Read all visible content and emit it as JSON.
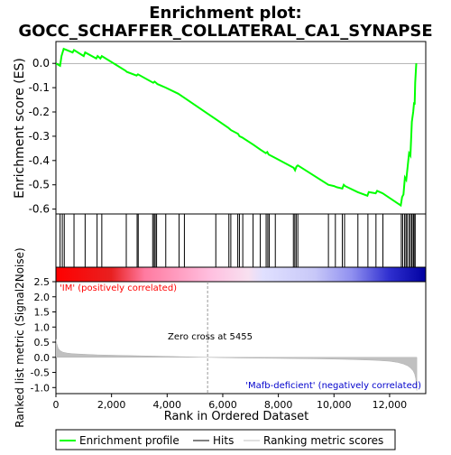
{
  "chart_data": {
    "type": "line",
    "title_line1": "Enrichment plot:",
    "title_line2": "GOCC_SCHAFFER_COLLATERAL_CA1_SYNAPSE",
    "top_panel": {
      "ylabel": "Enrichment score (ES)",
      "ylim": [
        -0.62,
        0.09
      ],
      "yticks": [
        0.0,
        -0.1,
        -0.2,
        -0.3,
        -0.4,
        -0.5,
        -0.6
      ],
      "ytick_labels": [
        "0.0",
        "-0.1",
        "-0.2",
        "-0.3",
        "-0.4",
        "-0.5",
        "-0.6"
      ],
      "series": [
        {
          "name": "Enrichment profile",
          "color": "#00ff00",
          "x": [
            0,
            150,
            200,
            280,
            600,
            650,
            1000,
            1050,
            1450,
            1500,
            1600,
            1650,
            2500,
            2550,
            2900,
            2950,
            3500,
            3550,
            3600,
            3650,
            3950,
            4400,
            4600,
            5750,
            6200,
            6300,
            6550,
            6600,
            6700,
            7100,
            7350,
            7550,
            7600,
            7650,
            7900,
            8550,
            8600,
            8650,
            8700,
            9800,
            10000,
            10100,
            10300,
            10350,
            10400,
            10850,
            11200,
            11250,
            11500,
            11550,
            11750,
            12400,
            12450,
            12500,
            12550,
            12600,
            12700,
            12750,
            12800,
            12850,
            12880,
            12900,
            12920,
            12960
          ],
          "y": [
            0.0,
            -0.01,
            0.03,
            0.06,
            0.045,
            0.055,
            0.03,
            0.045,
            0.02,
            0.03,
            0.02,
            0.03,
            -0.03,
            -0.035,
            -0.05,
            -0.045,
            -0.08,
            -0.075,
            -0.08,
            -0.085,
            -0.1,
            -0.125,
            -0.14,
            -0.23,
            -0.265,
            -0.275,
            -0.29,
            -0.3,
            -0.305,
            -0.335,
            -0.355,
            -0.37,
            -0.365,
            -0.375,
            -0.39,
            -0.43,
            -0.44,
            -0.425,
            -0.42,
            -0.5,
            -0.505,
            -0.51,
            -0.515,
            -0.5,
            -0.505,
            -0.53,
            -0.545,
            -0.53,
            -0.535,
            -0.525,
            -0.535,
            -0.585,
            -0.55,
            -0.54,
            -0.47,
            -0.48,
            -0.37,
            -0.38,
            -0.24,
            -0.2,
            -0.16,
            -0.17,
            -0.08,
            0.0
          ]
        }
      ]
    },
    "hits_panel": {
      "hit_positions": [
        150,
        230,
        300,
        650,
        1050,
        1480,
        1650,
        2530,
        2920,
        2960,
        3480,
        3530,
        3570,
        3620,
        3950,
        4430,
        4620,
        5750,
        6220,
        6290,
        6540,
        6600,
        6720,
        7090,
        7350,
        7560,
        7620,
        7670,
        7890,
        8540,
        8590,
        8640,
        8700,
        9800,
        10050,
        10300,
        10380,
        10860,
        11220,
        11510,
        11760,
        12420,
        12470,
        12540,
        12590,
        12630,
        12700,
        12750,
        12800,
        12850,
        12880,
        12920
      ],
      "hit_color": "#000000",
      "gradient_colors": [
        "#ff0000",
        "#ffffff",
        "#0000ff"
      ]
    },
    "bottom_panel": {
      "ylabel": "Ranked list metric (Signal2Noise)",
      "xlabel": "Rank in Ordered Dataset",
      "ylim": [
        -1.2,
        2.5
      ],
      "yticks": [
        2.5,
        2.0,
        1.5,
        1.0,
        0.5,
        0.0,
        -0.5,
        -1.0
      ],
      "ytick_labels": [
        "2.5",
        "2.0",
        "1.5",
        "1.0",
        "0.5",
        "0.0",
        "-0.5",
        "-1.0"
      ],
      "xlim": [
        0,
        13300
      ],
      "xticks": [
        0,
        2000,
        4000,
        6000,
        8000,
        10000,
        12000
      ],
      "xtick_labels": [
        "0",
        "2,000",
        "4,000",
        "6,000",
        "8,000",
        "10,000",
        "12,000"
      ],
      "metric_x": [
        0,
        30,
        80,
        150,
        250,
        400,
        600,
        1000,
        1500,
        2500,
        3500,
        4500,
        5455,
        6500,
        7500,
        8500,
        9500,
        10500,
        11500,
        12000,
        12300,
        12500,
        12650,
        12750,
        12850,
        12900,
        12940,
        12960,
        12980
      ],
      "metric_y": [
        0.6,
        0.45,
        0.3,
        0.22,
        0.17,
        0.14,
        0.12,
        0.1,
        0.08,
        0.06,
        0.04,
        0.02,
        0.0,
        -0.02,
        -0.03,
        -0.04,
        -0.05,
        -0.07,
        -0.1,
        -0.13,
        -0.17,
        -0.22,
        -0.28,
        -0.35,
        -0.45,
        -0.55,
        -0.7,
        -0.9,
        -1.1
      ],
      "metric_color": "#c0c0c0",
      "zero_cross_label": "Zero cross at 5455",
      "zero_cross_x": 5455,
      "positive_label": "'IM' (positively correlated)",
      "positive_color": "#ff0000",
      "negative_label": "'Mafb-deficient' (negatively correlated)",
      "negative_color": "#0000cc"
    },
    "legend": {
      "placement": "bottom",
      "items": [
        {
          "label": "Enrichment profile",
          "color": "#00ff00"
        },
        {
          "label": "Hits",
          "color": "#000000"
        },
        {
          "label": "Ranking metric scores",
          "color": "#c0c0c0"
        }
      ]
    }
  }
}
